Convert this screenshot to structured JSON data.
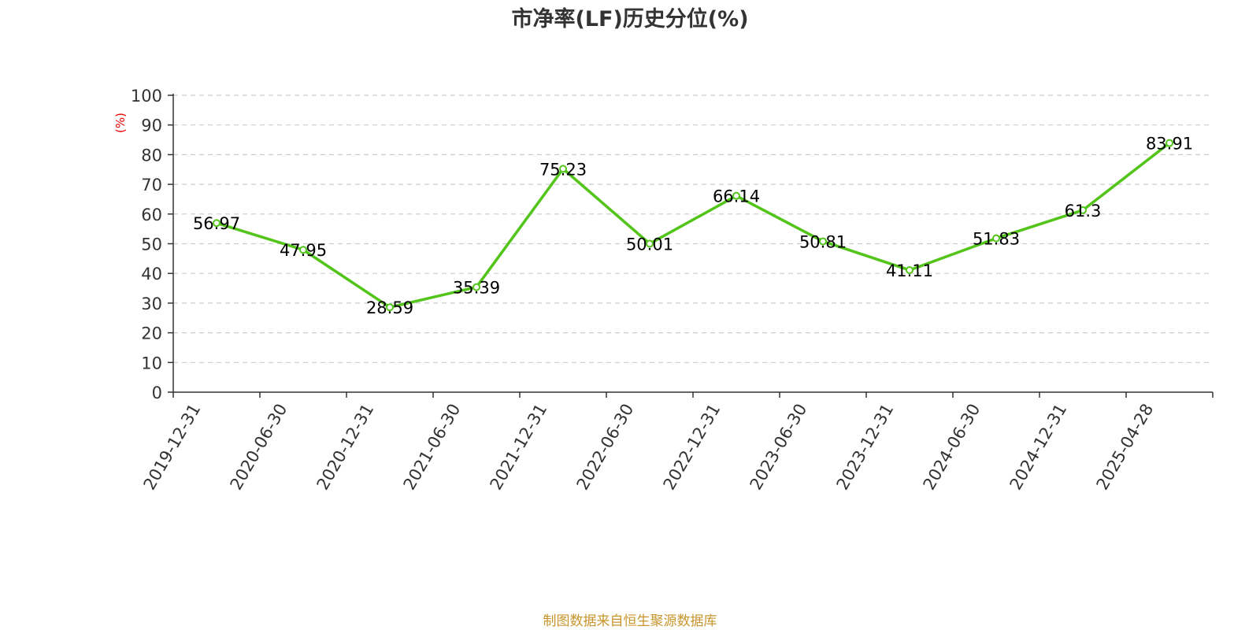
{
  "chart_data": {
    "type": "line",
    "title": "市净率(LF)历史分位(%)",
    "ylabel": "(%)",
    "ylim": [
      0,
      100
    ],
    "yticks": [
      0,
      10,
      20,
      30,
      40,
      50,
      60,
      70,
      80,
      90,
      100
    ],
    "categories": [
      "2019-12-31",
      "2020-06-30",
      "2020-12-31",
      "2021-06-30",
      "2021-12-31",
      "2022-06-30",
      "2022-12-31",
      "2023-06-30",
      "2023-12-31",
      "2024-06-30",
      "2024-12-31",
      "2025-04-28"
    ],
    "values": [
      56.97,
      47.95,
      28.59,
      35.39,
      75.23,
      50.01,
      66.14,
      50.81,
      41.11,
      51.83,
      61.3,
      83.91
    ],
    "data_labels": [
      "56.97",
      "47.95",
      "28.59",
      "35.39",
      "75.23",
      "50.01",
      "66.14",
      "50.81",
      "41.11",
      "51.83",
      "61.3",
      "83.91"
    ],
    "grid": true,
    "line_color": "#52c41a",
    "ylabel_color": "#e60000"
  },
  "source": {
    "text": "制图数据来自恒生聚源数据库",
    "color": "#c8952c"
  }
}
